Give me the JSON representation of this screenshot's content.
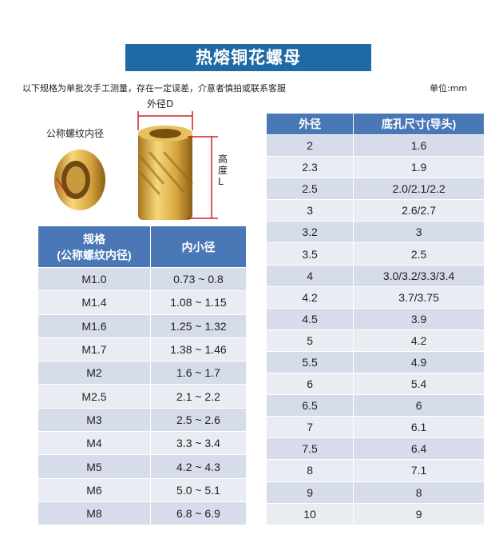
{
  "title": "热熔铜花螺母",
  "note": "以下规格为单批次手工测量，存在一定误差，介意者慎拍或联系客服",
  "unit": "单位:mm",
  "diagram": {
    "outer_diameter": "外径D",
    "nominal_thread": "公称螺纹内径",
    "height": "高度L"
  },
  "left_table": {
    "headers": [
      "规格\n(公称螺纹内径)",
      "内小径"
    ],
    "header_line1": "规格",
    "header_line2": "(公称螺纹内径)",
    "header2": "内小径",
    "rows": [
      [
        "M1.0",
        "0.73 ~ 0.8"
      ],
      [
        "M1.4",
        "1.08 ~ 1.15"
      ],
      [
        "M1.6",
        "1.25 ~ 1.32"
      ],
      [
        "M1.7",
        "1.38 ~ 1.46"
      ],
      [
        "M2",
        "1.6 ~ 1.7"
      ],
      [
        "M2.5",
        "2.1 ~ 2.2"
      ],
      [
        "M3",
        "2.5 ~ 2.6"
      ],
      [
        "M4",
        "3.3 ~ 3.4"
      ],
      [
        "M5",
        "4.2 ~ 4.3"
      ],
      [
        "M6",
        "5.0 ~ 5.1"
      ],
      [
        "M8",
        "6.8 ~ 6.9"
      ]
    ]
  },
  "right_table": {
    "headers": [
      "外径",
      "底孔尺寸(导头)"
    ],
    "rows": [
      [
        "2",
        "1.6"
      ],
      [
        "2.3",
        "1.9"
      ],
      [
        "2.5",
        "2.0/2.1/2.2"
      ],
      [
        "3",
        "2.6/2.7"
      ],
      [
        "3.2",
        "3"
      ],
      [
        "3.5",
        "2.5"
      ],
      [
        "4",
        "3.0/3.2/3.3/3.4"
      ],
      [
        "4.2",
        "3.7/3.75"
      ],
      [
        "4.5",
        "3.9"
      ],
      [
        "5",
        "4.2"
      ],
      [
        "5.5",
        "4.9"
      ],
      [
        "6",
        "5.4"
      ],
      [
        "6.5",
        "6"
      ],
      [
        "7",
        "6.1"
      ],
      [
        "7.5",
        "6.4"
      ],
      [
        "8",
        "7.1"
      ],
      [
        "9",
        "8"
      ],
      [
        "10",
        "9"
      ]
    ]
  },
  "colors": {
    "title_bg": "#1f69a4",
    "header_bg": "#4a78b6",
    "row_dark": "#d6dcea",
    "row_light": "#e9ecf3",
    "dimension_line": "#d0202a"
  }
}
